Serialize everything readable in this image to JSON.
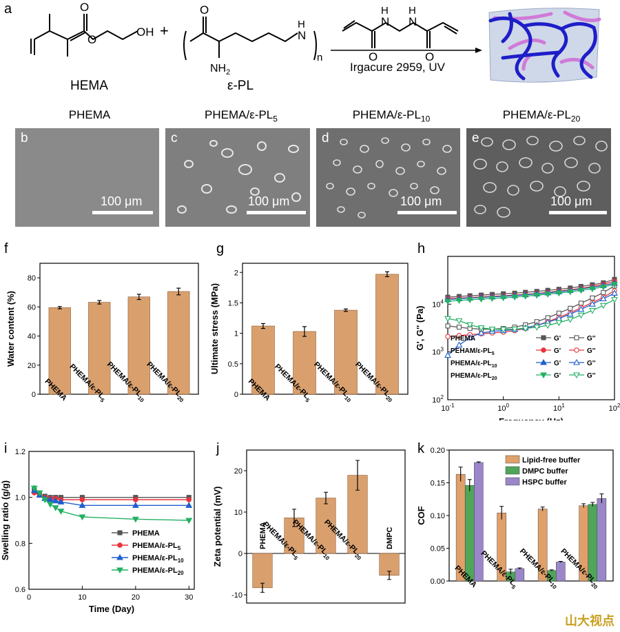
{
  "panel_letters": [
    "a",
    "b",
    "c",
    "d",
    "e",
    "f",
    "g",
    "h",
    "i",
    "j",
    "k"
  ],
  "scheme": {
    "monomer1": "HEMA",
    "monomer2": "ε-PL",
    "repeat_n": "n",
    "reagent_condition": "Irgacure 2959, UV",
    "plus": "+",
    "atom_O": "O",
    "atom_OH": "OH",
    "atom_NH2": "NH",
    "atom_NH2_sub": "2",
    "atom_H": "H",
    "atom_N": "N"
  },
  "sem": {
    "titles": [
      "PHEMA",
      "PHEMA/ε-PL",
      "PHEMA/ε-PL",
      "PHEMA/ε-PL"
    ],
    "title_subs": [
      "",
      "5",
      "10",
      "20"
    ],
    "scale_label": "100 μm"
  },
  "sample_labels": [
    "PHEMA",
    "PHEMA/ε-PL",
    "PHEMA/ε-PL",
    "PHEMA/ε-PL"
  ],
  "sample_subs": [
    "",
    "5",
    "10",
    "20"
  ],
  "chart_data": [
    {
      "panel": "f",
      "type": "bar",
      "categories": [
        "PHEMA",
        "PHEMA/ε-PL5",
        "PHEMA/ε-PL10",
        "PHEMA/ε-PL20"
      ],
      "values": [
        59.5,
        63.2,
        66.9,
        70.6
      ],
      "errors": [
        0.8,
        1.2,
        1.8,
        2.3
      ],
      "ylabel": "Water content (%)",
      "ylim": [
        0,
        90
      ],
      "yticks": [
        0,
        20,
        40,
        60,
        80
      ]
    },
    {
      "panel": "g",
      "type": "bar",
      "categories": [
        "PHEMA",
        "PHEMA/ε-PL5",
        "PHEMA/ε-PL10",
        "PHEMA/ε-PL20"
      ],
      "values": [
        1.12,
        1.03,
        1.38,
        1.97
      ],
      "errors": [
        0.04,
        0.08,
        0.02,
        0.04
      ],
      "ylabel": "Ultimate stress (MPa)",
      "ylim": [
        0,
        2.15
      ],
      "yticks": [
        0.0,
        0.5,
        1.0,
        1.5,
        2.0
      ]
    },
    {
      "panel": "h",
      "type": "line",
      "xlabel": "Frequency (Hz)",
      "ylabel": "G', G'' (Pa)",
      "xscale": "log",
      "yscale": "log",
      "xlim": [
        0.1,
        100
      ],
      "ylim": [
        100,
        100000
      ],
      "xticks": [
        "10-1",
        "100",
        "101",
        "102"
      ],
      "yticks": [
        "102",
        "103",
        "104"
      ],
      "legend_modulus_labels": [
        "G'",
        "G''"
      ],
      "legend_placement": "bottom-right",
      "x": [
        0.1,
        0.16,
        0.25,
        0.4,
        0.63,
        1,
        1.6,
        2.5,
        4,
        6.3,
        10,
        16,
        25,
        40,
        63,
        100
      ],
      "series": [
        {
          "name": "PHEMA",
          "color": "#555555",
          "marker": "square",
          "g_prime": [
            14000,
            14500,
            15000,
            15500,
            16000,
            16500,
            17000,
            17700,
            18500,
            19500,
            20500,
            21800,
            23500,
            25500,
            28000,
            33000
          ],
          "g_dprime": [
            3500,
            3300,
            3100,
            3000,
            3000,
            3100,
            3300,
            3700,
            4300,
            5200,
            6500,
            8200,
            10500,
            13500,
            17500,
            24000
          ]
        },
        {
          "name": "PEHAM/ε-PL5",
          "color": "#e8333b",
          "marker": "circle",
          "g_prime": [
            13000,
            13400,
            13800,
            14200,
            14600,
            15000,
            15500,
            16100,
            16800,
            17700,
            18800,
            20000,
            21500,
            23500,
            26000,
            30000
          ],
          "g_dprime": [
            2100,
            2200,
            2300,
            2400,
            2500,
            2600,
            2800,
            3100,
            3600,
            4300,
            5300,
            6600,
            8400,
            10800,
            14000,
            19000
          ]
        },
        {
          "name": "PHEMA/ε-PL10",
          "color": "#1f5ecc",
          "marker": "triangle-up",
          "g_prime": [
            12500,
            13000,
            13400,
            13800,
            14200,
            14600,
            15100,
            15700,
            16400,
            17200,
            18200,
            19400,
            20800,
            22500,
            24500,
            27500
          ],
          "g_dprime": [
            850,
            1400,
            2000,
            2500,
            2700,
            2800,
            2950,
            3200,
            3600,
            4200,
            5000,
            6200,
            7800,
            10000,
            13000,
            17000
          ]
        },
        {
          "name": "PHEMA/ε-PL20",
          "color": "#22b062",
          "marker": "triangle-down",
          "g_prime": [
            11500,
            12000,
            12400,
            12800,
            13200,
            13600,
            14100,
            14700,
            15400,
            16200,
            17100,
            18200,
            19500,
            21000,
            23000,
            26000
          ],
          "g_dprime": [
            5000,
            4500,
            3700,
            3200,
            3000,
            2950,
            3000,
            3100,
            3300,
            3600,
            4100,
            4800,
            5900,
            7400,
            9400,
            12500
          ]
        }
      ]
    },
    {
      "panel": "i",
      "type": "line",
      "xlabel": "Time (Day)",
      "ylabel": "Swelling ratio (g/g)",
      "xlim": [
        0,
        31
      ],
      "ylim": [
        0.6,
        1.2
      ],
      "xticks": [
        0,
        10,
        20,
        30
      ],
      "yticks": [
        0.6,
        0.8,
        1.0,
        1.2
      ],
      "legend_placement": "bottom-right",
      "x": [
        1,
        2,
        3,
        4,
        5,
        6,
        10,
        20,
        30
      ],
      "series": [
        {
          "name": "PHEMA",
          "color": "#555555",
          "marker": "square",
          "values": [
            1.03,
            1.01,
            1.005,
            1.0,
            1.0,
            1.0,
            1.0,
            1.0,
            1.0
          ],
          "errors": [
            0.01,
            0.01,
            0.005,
            0.005,
            0.005,
            0.005,
            0.005,
            0.005,
            0.005
          ]
        },
        {
          "name": "PHEMA/ε-PL5",
          "color": "#e8333b",
          "marker": "circle",
          "values": [
            1.02,
            1.01,
            1.0,
            0.995,
            0.995,
            0.99,
            0.99,
            0.99,
            0.99
          ],
          "errors": [
            0.01,
            0.01,
            0.005,
            0.005,
            0.005,
            0.005,
            0.005,
            0.005,
            0.005
          ]
        },
        {
          "name": "PHEMA/ε-PL10",
          "color": "#1f5ecc",
          "marker": "triangle-up",
          "values": [
            1.03,
            1.01,
            0.995,
            0.99,
            0.985,
            0.98,
            0.965,
            0.965,
            0.965
          ],
          "errors": [
            0.01,
            0.01,
            0.005,
            0.005,
            0.005,
            0.005,
            0.005,
            0.005,
            0.005
          ]
        },
        {
          "name": "PHEMA/ε-PL20",
          "color": "#22b062",
          "marker": "triangle-down",
          "values": [
            1.04,
            1.02,
            0.99,
            0.97,
            0.955,
            0.94,
            0.915,
            0.905,
            0.9
          ],
          "errors": [
            0.015,
            0.01,
            0.01,
            0.005,
            0.005,
            0.005,
            0.005,
            0.005,
            0.005
          ]
        }
      ]
    },
    {
      "panel": "j",
      "type": "bar",
      "categories": [
        "PHEMA",
        "PHEMA/ε-PL5",
        "PHEMA/ε-PL10",
        "PHEMA/ε-PL20",
        "DMPC"
      ],
      "values": [
        -8.3,
        8.6,
        13.4,
        18.9,
        -5.3
      ],
      "errors": [
        1.1,
        2.1,
        1.4,
        3.6,
        1.0
      ],
      "ylabel": "Zeta potential (mV)",
      "ylim": [
        -12,
        25
      ],
      "yticks": [
        -10,
        0,
        10,
        20
      ]
    },
    {
      "panel": "k",
      "type": "bar",
      "categories": [
        "PHEMA",
        "PHEMA/ε-PL5",
        "PHEMA/ε-PL10",
        "PHEMA/ε-PL20"
      ],
      "ylabel": "COF",
      "ylim": [
        0,
        0.2
      ],
      "yticks": [
        "0.00",
        "0.05",
        "0.10",
        "0.15",
        "0.20"
      ],
      "legend_placement": "top-right",
      "series": [
        {
          "name": "Lipid-free buffer",
          "color": "#e0a06a",
          "values": [
            0.163,
            0.104,
            0.11,
            0.115
          ],
          "errors": [
            0.011,
            0.01,
            0.003,
            0.003
          ]
        },
        {
          "name": "DMPC buffer",
          "color": "#4fa55a",
          "values": [
            0.146,
            0.014,
            0.016,
            0.117
          ],
          "errors": [
            0.009,
            0.004,
            0.001,
            0.003
          ]
        },
        {
          "name": "HSPC buffer",
          "color": "#9a86c8",
          "values": [
            0.181,
            0.019,
            0.029,
            0.126
          ],
          "errors": [
            0.001,
            0.001,
            0.001,
            0.007
          ]
        }
      ]
    }
  ],
  "watermark": "山大视点"
}
